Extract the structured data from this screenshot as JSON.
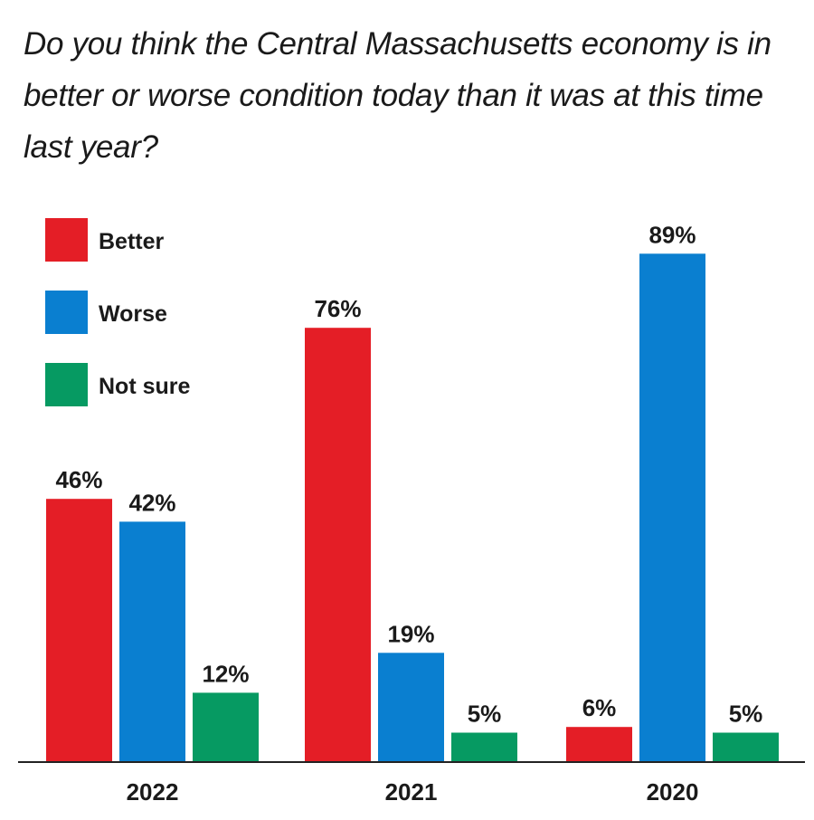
{
  "chart_data": {
    "type": "bar",
    "title": "Do you think the Central Massachusetts economy is in better or worse condition today than it was at this time last year?",
    "categories": [
      "2022",
      "2021",
      "2020"
    ],
    "series": [
      {
        "name": "Better",
        "color": "#e41e26",
        "values": [
          46,
          76,
          6
        ],
        "labels": [
          "46%",
          "76%",
          "6%"
        ]
      },
      {
        "name": "Worse",
        "color": "#0a7fd0",
        "values": [
          42,
          19,
          89
        ],
        "labels": [
          "42%",
          "19%",
          "89%"
        ]
      },
      {
        "name": "Not sure",
        "color": "#069a62",
        "values": [
          12,
          5,
          5
        ],
        "labels": [
          "12%",
          "5%",
          "5%"
        ]
      }
    ],
    "xlabel": "",
    "ylabel": "",
    "ylim": [
      0,
      100
    ],
    "unit": "%",
    "grid": false,
    "legend": "top-left"
  }
}
